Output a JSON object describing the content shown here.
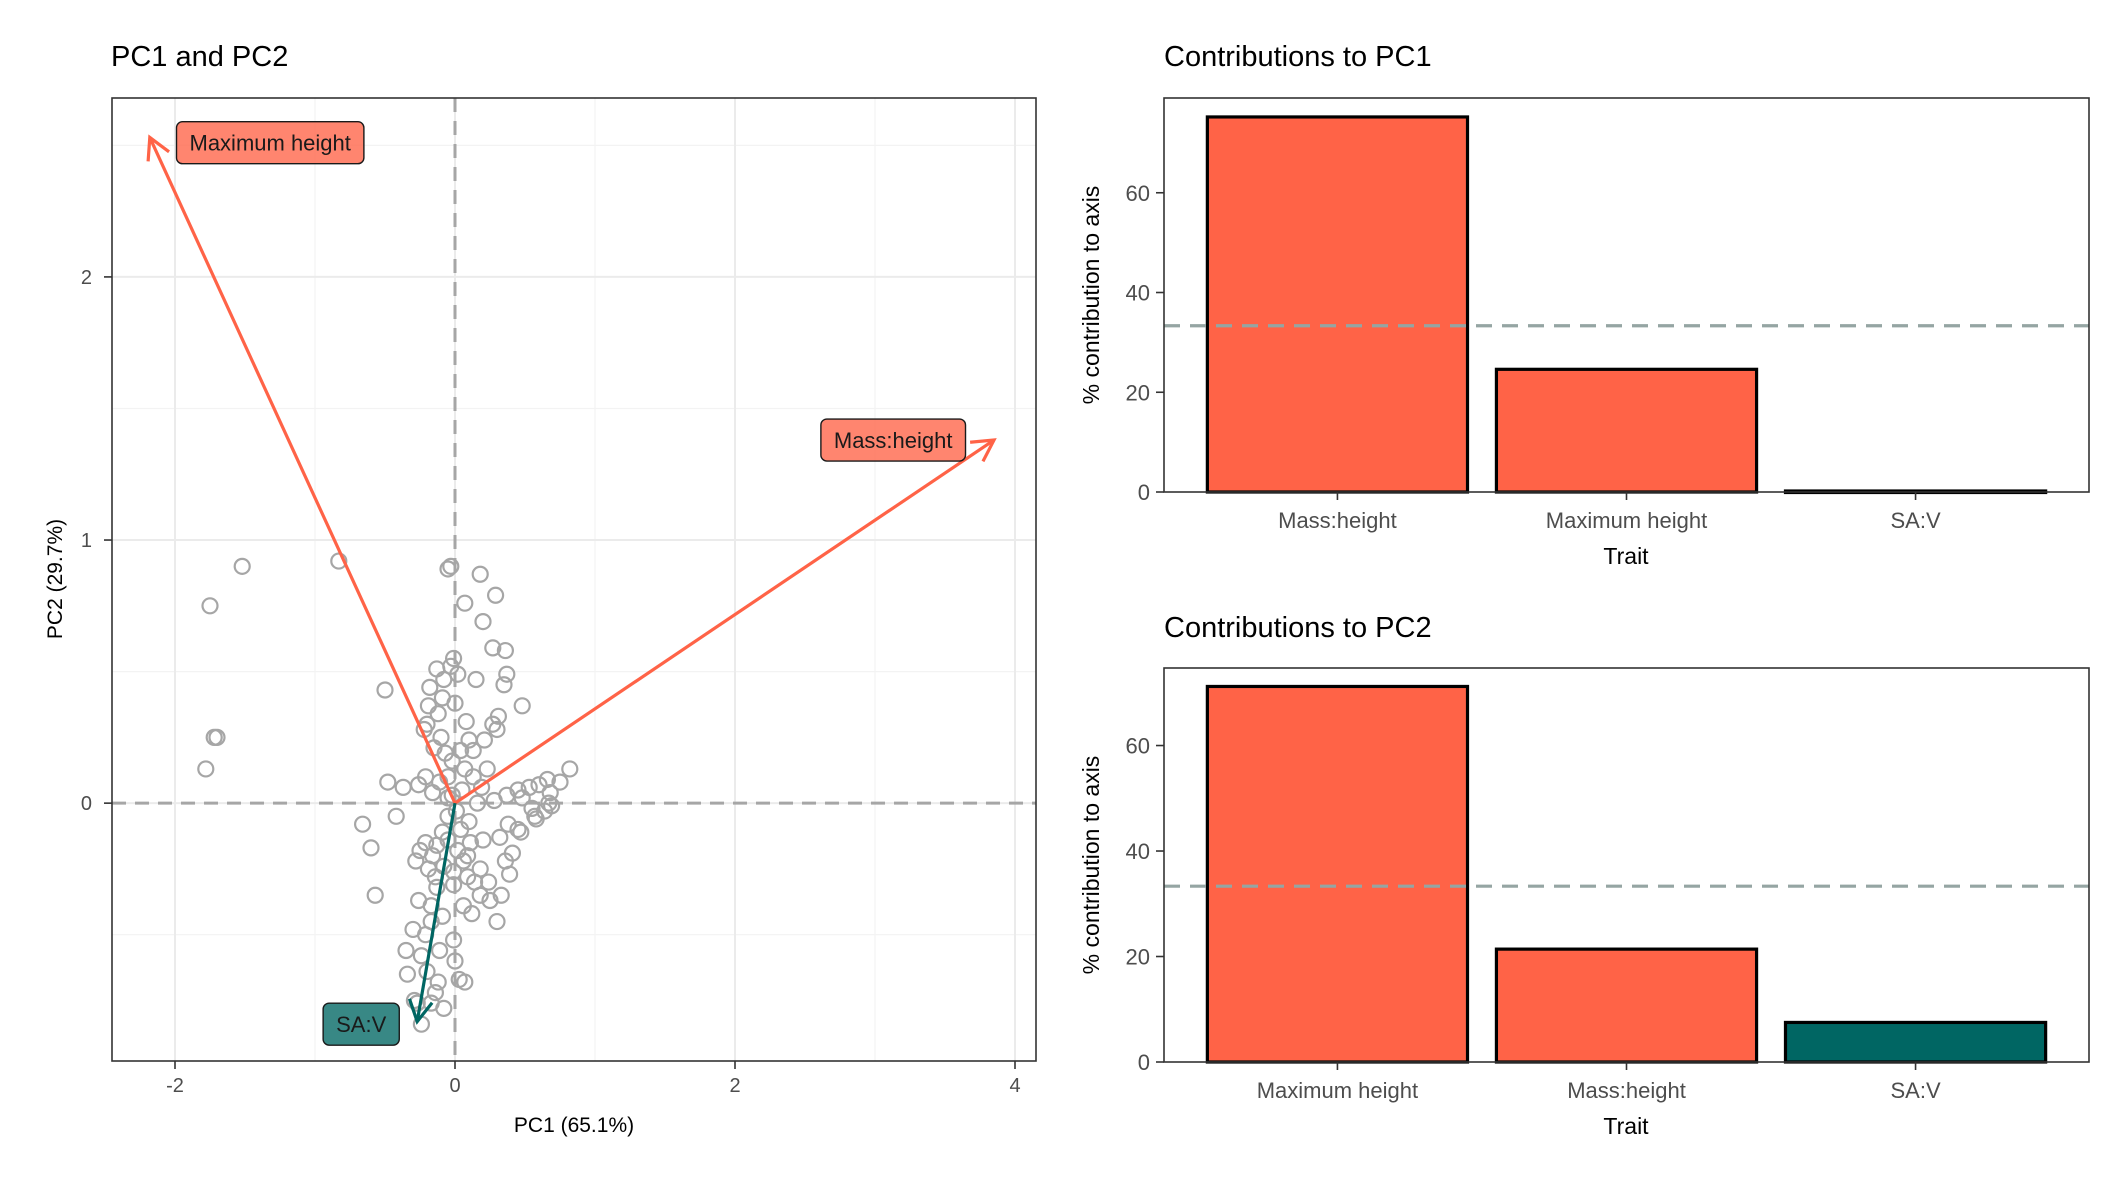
{
  "colors": {
    "accent": "#FF6347",
    "teal": "#006663",
    "point_stroke": "#A6A6A6",
    "ref_line": "#A6A6A6",
    "threshold_line": "#95A5A3"
  },
  "chart_data": [
    {
      "id": "biplot",
      "type": "scatter",
      "title": "PC1 and PC2",
      "xlabel": "PC1 (65.1%)",
      "ylabel": "PC2 (29.7%)",
      "xlim": [
        -2.45,
        4.15
      ],
      "ylim": [
        -0.98,
        2.68
      ],
      "xticks": [
        -2,
        0,
        2,
        4
      ],
      "xtick_labels": [
        "-2",
        "0",
        "2",
        "4"
      ],
      "yticks": [
        0,
        1,
        2
      ],
      "ytick_labels": [
        "0",
        "1",
        "2"
      ],
      "grid": true,
      "reference_lines": {
        "x": 0,
        "y": 0
      },
      "points": [
        [
          -1.75,
          0.75
        ],
        [
          -1.52,
          0.9
        ],
        [
          -1.7,
          0.25
        ],
        [
          -1.72,
          0.25
        ],
        [
          -1.78,
          0.13
        ],
        [
          -0.83,
          0.92
        ],
        [
          -0.5,
          0.43
        ],
        [
          -0.48,
          0.08
        ],
        [
          -0.37,
          0.06
        ],
        [
          -0.66,
          -0.08
        ],
        [
          -0.42,
          -0.05
        ],
        [
          -0.6,
          -0.17
        ],
        [
          -0.57,
          -0.35
        ],
        [
          -0.05,
          0.89
        ],
        [
          -0.03,
          0.9
        ],
        [
          0.18,
          0.87
        ],
        [
          0.29,
          0.79
        ],
        [
          0.07,
          0.76
        ],
        [
          0.2,
          0.69
        ],
        [
          0.27,
          0.59
        ],
        [
          0.36,
          0.58
        ],
        [
          0.37,
          0.49
        ],
        [
          0.35,
          0.45
        ],
        [
          0.48,
          0.37
        ],
        [
          0.15,
          0.47
        ],
        [
          -0.12,
          0.34
        ],
        [
          -0.19,
          0.37
        ],
        [
          -0.22,
          0.28
        ],
        [
          -0.1,
          0.25
        ],
        [
          0.1,
          0.24
        ],
        [
          0.27,
          0.3
        ],
        [
          0.31,
          0.33
        ],
        [
          0.21,
          0.24
        ],
        [
          0.3,
          0.28
        ],
        [
          0.13,
          0.2
        ],
        [
          0.04,
          0.2
        ],
        [
          -0.07,
          0.19
        ],
        [
          -0.03,
          0.52
        ],
        [
          -0.01,
          0.55
        ],
        [
          0.02,
          0.49
        ],
        [
          -0.08,
          0.47
        ],
        [
          -0.13,
          0.51
        ],
        [
          -0.18,
          0.44
        ],
        [
          -0.09,
          0.4
        ],
        [
          0.0,
          0.38
        ],
        [
          0.08,
          0.31
        ],
        [
          -0.2,
          0.3
        ],
        [
          -0.15,
          0.21
        ],
        [
          -0.02,
          0.16
        ],
        [
          0.07,
          0.13
        ],
        [
          -0.05,
          0.1
        ],
        [
          0.13,
          0.1
        ],
        [
          0.23,
          0.13
        ],
        [
          0.05,
          0.05
        ],
        [
          -0.11,
          0.08
        ],
        [
          -0.21,
          0.1
        ],
        [
          -0.26,
          0.07
        ],
        [
          -0.16,
          0.04
        ],
        [
          -0.05,
          0.02
        ],
        [
          0.19,
          0.06
        ],
        [
          0.28,
          0.01
        ],
        [
          0.37,
          0.03
        ],
        [
          0.45,
          0.05
        ],
        [
          0.48,
          0.02
        ],
        [
          0.53,
          0.06
        ],
        [
          0.6,
          0.07
        ],
        [
          0.66,
          0.09
        ],
        [
          0.68,
          0.04
        ],
        [
          0.55,
          -0.02
        ],
        [
          0.57,
          -0.05
        ],
        [
          0.64,
          -0.03
        ],
        [
          0.67,
          0.0
        ],
        [
          0.82,
          0.13
        ],
        [
          0.75,
          0.08
        ],
        [
          0.69,
          -0.01
        ],
        [
          0.58,
          -0.06
        ],
        [
          0.38,
          -0.08
        ],
        [
          0.32,
          -0.13
        ],
        [
          0.45,
          -0.1
        ],
        [
          0.47,
          -0.11
        ],
        [
          0.36,
          -0.22
        ],
        [
          0.41,
          -0.19
        ],
        [
          0.39,
          -0.27
        ],
        [
          0.33,
          -0.35
        ],
        [
          0.24,
          -0.3
        ],
        [
          0.18,
          -0.25
        ],
        [
          0.09,
          -0.2
        ],
        [
          0.2,
          -0.14
        ],
        [
          -0.05,
          -0.05
        ],
        [
          -0.09,
          -0.11
        ],
        [
          -0.13,
          -0.16
        ],
        [
          -0.21,
          -0.15
        ],
        [
          -0.16,
          -0.2
        ],
        [
          -0.25,
          -0.18
        ],
        [
          -0.28,
          -0.22
        ],
        [
          -0.19,
          -0.25
        ],
        [
          -0.08,
          -0.24
        ],
        [
          0.02,
          -0.18
        ],
        [
          0.09,
          -0.28
        ],
        [
          -0.01,
          -0.31
        ],
        [
          -0.13,
          -0.32
        ],
        [
          -0.26,
          -0.37
        ],
        [
          -0.17,
          -0.39
        ],
        [
          -0.09,
          -0.43
        ],
        [
          -0.17,
          -0.45
        ],
        [
          -0.21,
          -0.5
        ],
        [
          -0.11,
          -0.56
        ],
        [
          -0.01,
          -0.52
        ],
        [
          0.06,
          -0.39
        ],
        [
          0.14,
          -0.3
        ],
        [
          -0.3,
          -0.48
        ],
        [
          -0.24,
          -0.58
        ],
        [
          -0.35,
          -0.56
        ],
        [
          -0.2,
          -0.64
        ],
        [
          -0.12,
          -0.68
        ],
        [
          -0.34,
          -0.65
        ],
        [
          0.0,
          -0.6
        ],
        [
          0.03,
          -0.67
        ],
        [
          -0.17,
          -0.76
        ],
        [
          -0.08,
          -0.78
        ],
        [
          -0.24,
          -0.84
        ],
        [
          0.07,
          -0.68
        ],
        [
          0.04,
          -0.1
        ],
        [
          0.11,
          -0.15
        ],
        [
          -0.01,
          -0.26
        ],
        [
          0.12,
          -0.42
        ],
        [
          0.25,
          -0.37
        ],
        [
          0.3,
          -0.45
        ],
        [
          -0.14,
          -0.72
        ],
        [
          -0.27,
          -0.76
        ],
        [
          -0.29,
          -0.75
        ],
        [
          -0.02,
          0.03
        ],
        [
          0.01,
          -0.03
        ],
        [
          0.16,
          0.0
        ],
        [
          0.1,
          -0.07
        ],
        [
          -0.05,
          -0.14
        ],
        [
          0.06,
          -0.22
        ],
        [
          0.18,
          -0.35
        ],
        [
          -0.14,
          -0.28
        ]
      ],
      "arrows": [
        {
          "name": "Maximum height",
          "x": -2.18,
          "y": 2.53,
          "label_x": -1.32,
          "label_y": 2.51,
          "color": "#FF6347"
        },
        {
          "name": "Mass:height",
          "x": 3.85,
          "y": 1.38,
          "label_x": 3.13,
          "label_y": 1.38,
          "color": "#FF6347"
        },
        {
          "name": "SA:V",
          "x": -0.27,
          "y": -0.83,
          "label_x": -0.67,
          "label_y": -0.84,
          "color": "#006663"
        }
      ]
    },
    {
      "id": "contrib_pc1",
      "type": "bar",
      "title": "Contributions to PC1",
      "xlabel": "Trait",
      "ylabel": "% contribution to axis",
      "categories": [
        "Mass:height",
        "Maximum height",
        "SA:V"
      ],
      "values": [
        75.2,
        24.6,
        0.2
      ],
      "bar_colors": [
        "#FF6347",
        "#FF6347",
        "#FF6347"
      ],
      "ylim": [
        0,
        79
      ],
      "yticks": [
        0,
        20,
        40,
        60
      ],
      "threshold": 33.33
    },
    {
      "id": "contrib_pc2",
      "type": "bar",
      "title": "Contributions to PC2",
      "xlabel": "Trait",
      "ylabel": "% contribution to axis",
      "categories": [
        "Maximum height",
        "Mass:height",
        "SA:V"
      ],
      "values": [
        71.2,
        21.4,
        7.5
      ],
      "bar_colors": [
        "#FF6347",
        "#FF6347",
        "#006663"
      ],
      "ylim": [
        0,
        74.7
      ],
      "yticks": [
        0,
        20,
        40,
        60
      ],
      "threshold": 33.33
    }
  ]
}
